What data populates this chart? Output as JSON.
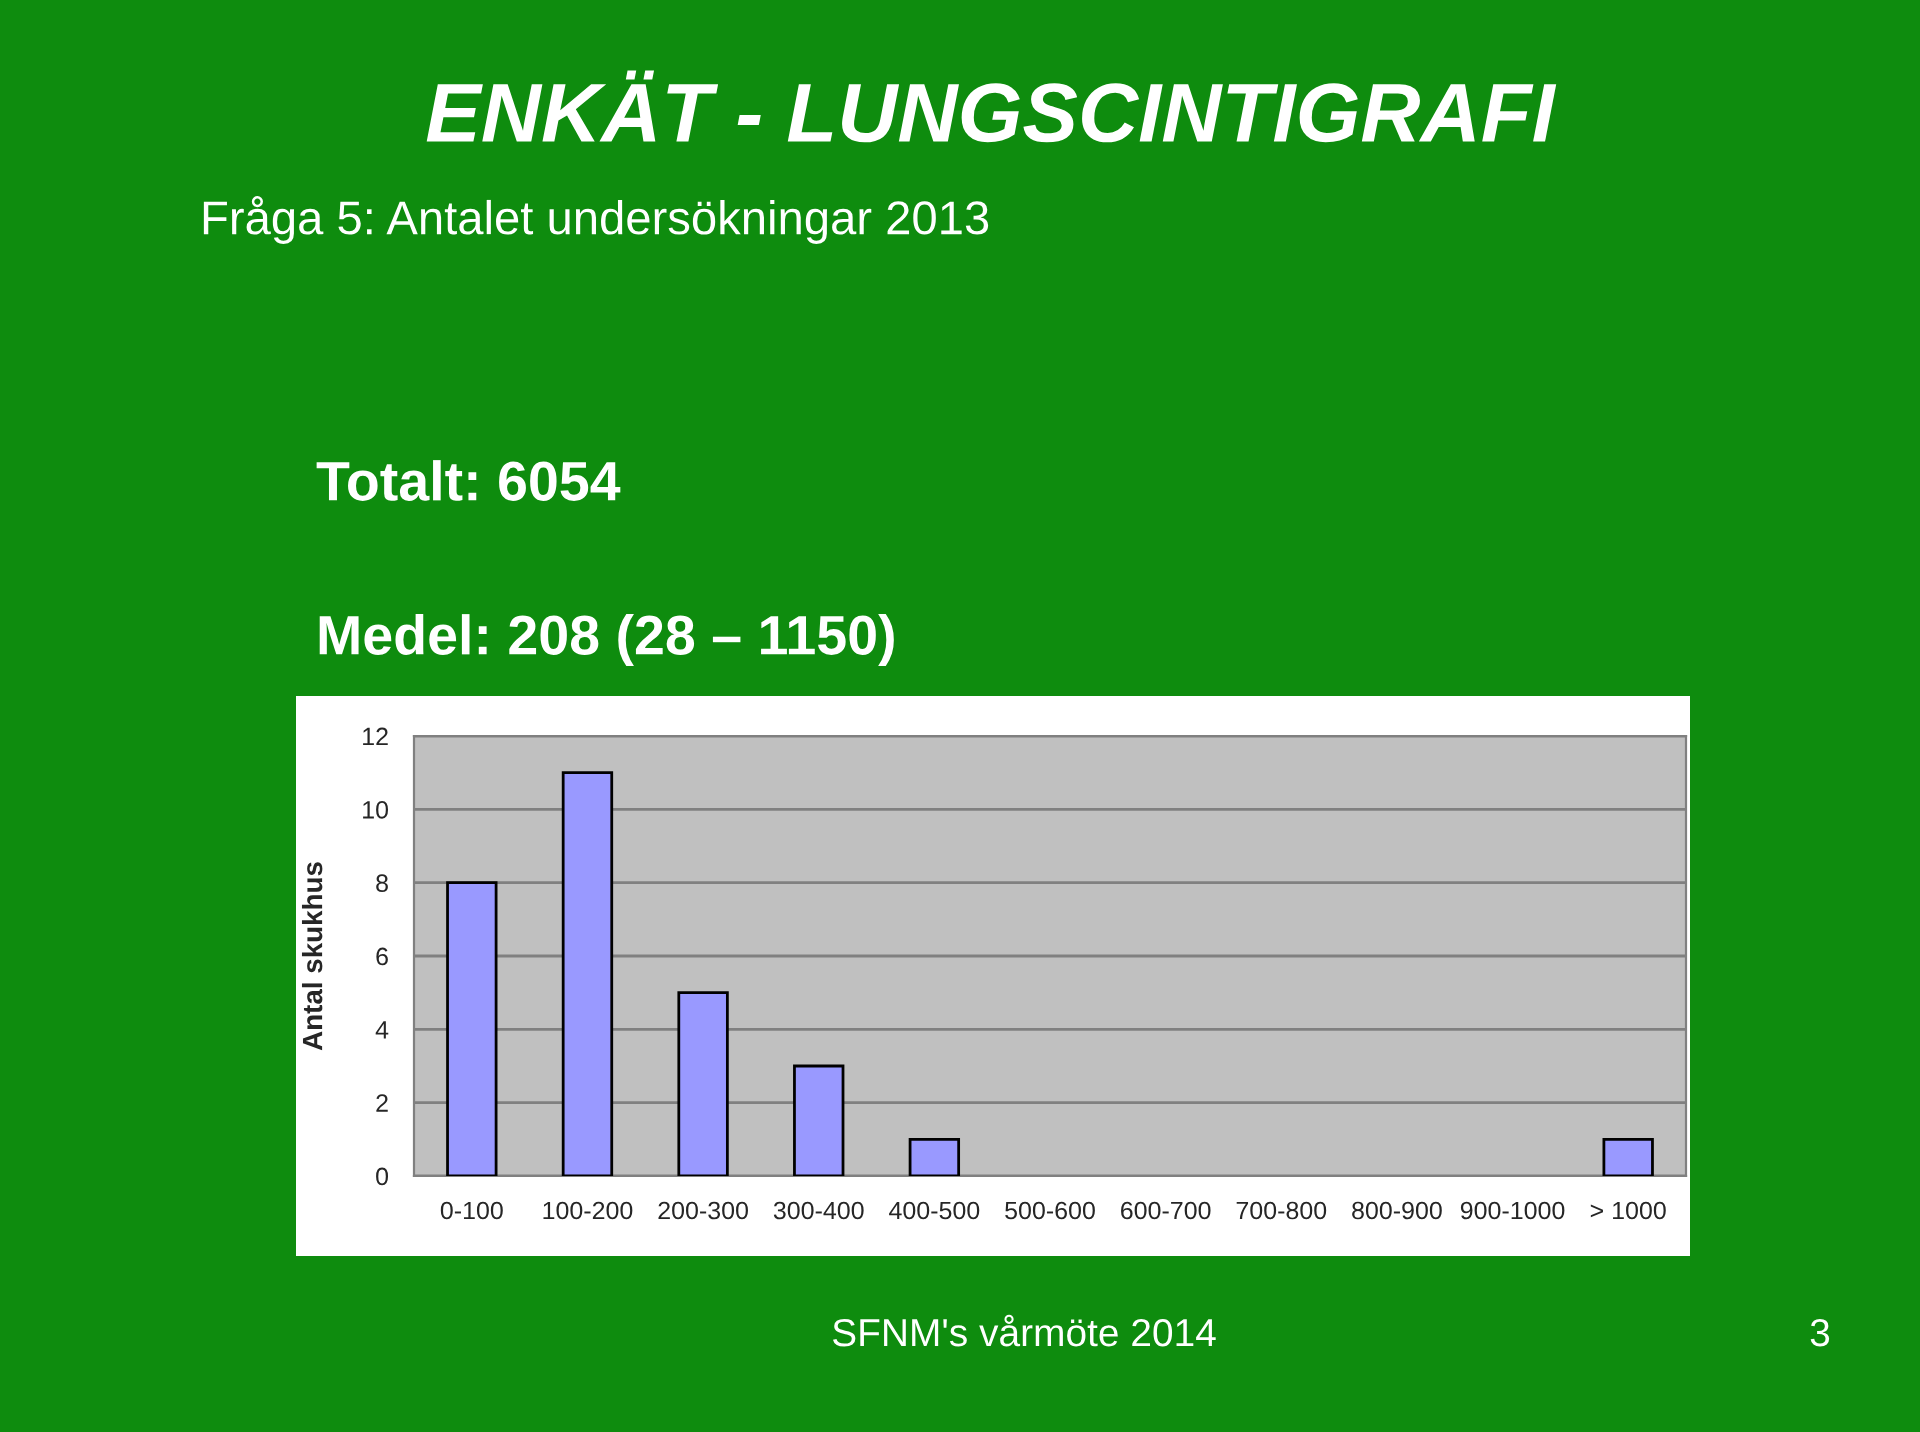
{
  "chart_data": {
    "type": "bar",
    "title": "ENKÄT - LUNGSCINTIGRAFI",
    "subtitle": "Fråga 5: Antalet undersökningar 2013",
    "ylabel": "Antal skukhus",
    "categories": [
      "0-100",
      "100-200",
      "200-300",
      "300-400",
      "400-500",
      "500-600",
      "600-700",
      "700-800",
      "800-900",
      "900-1000",
      "> 1000"
    ],
    "values": [
      8,
      11,
      5,
      3,
      1,
      0,
      0,
      0,
      0,
      0,
      1
    ],
    "color": "#9999ff",
    "ylim": [
      0,
      12
    ],
    "yticks": [
      0,
      2,
      4,
      6,
      8,
      10,
      12
    ],
    "grid": "y",
    "annotations": [
      "Totalt: 6054",
      "Medel: 208 (28 – 1150)",
      "SFNM's vårmöte 2014",
      "3"
    ]
  }
}
